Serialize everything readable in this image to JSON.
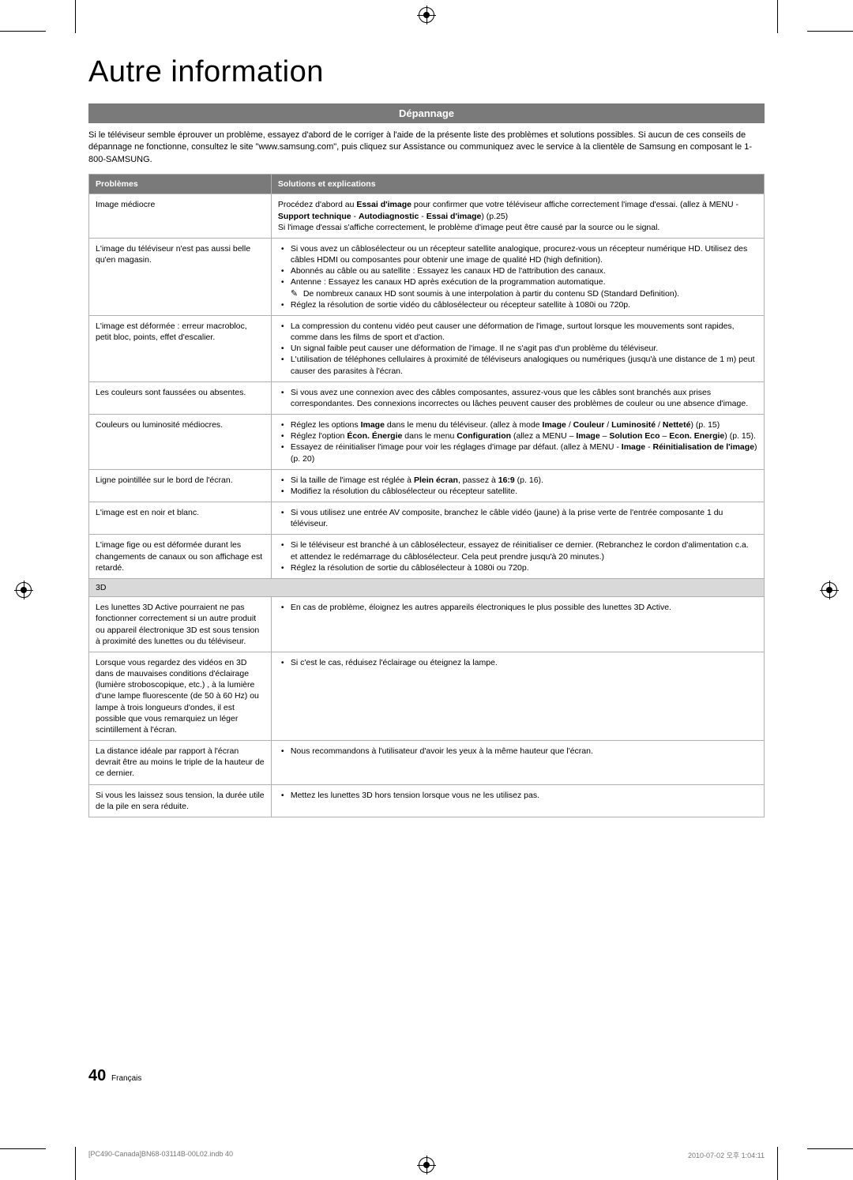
{
  "colors": {
    "section_bar_bg": "#7a7a7a",
    "section_bar_fg": "#ffffff",
    "table_border": "#b0b0b0",
    "cat_row_bg": "#d9d9d9",
    "body_text": "#000000",
    "page_bg": "#ffffff"
  },
  "title": "Autre information",
  "section_header": "Dépannage",
  "intro": "Si le téléviseur semble éprouver un problème, essayez d'abord de le corriger à l'aide de la présente liste des problèmes et solutions possibles. Si aucun de ces conseils de dépannage ne fonctionne, consultez le site \"www.samsung.com\", puis cliquez sur Assistance ou communiquez avec le service à la clientèle de Samsung en composant le 1-800-SAMSUNG.",
  "headers": {
    "problems": "Problèmes",
    "solutions": "Solutions et explications"
  },
  "rows": {
    "r0": {
      "prob": "Image médiocre",
      "sol_html": "Procédez d'abord au <b>Essai d'image</b> pour confirmer que votre téléviseur affiche correctement l'image d'essai. (allez à MENU - <b>Support technique</b> - <b>Autodiagnostic</b> - <b>Essai d'image</b>) (p.25)<br>Si l'image d'essai s'affiche correctement, le problème d'image peut être causé par la source ou le signal."
    },
    "r1": {
      "prob": "L'image du téléviseur n'est pas aussi belle qu'en magasin.",
      "b0": "Si vous avez un câblosélecteur ou un récepteur satellite analogique, procurez-vous un récepteur numérique HD. Utilisez des câbles HDMI ou composantes pour obtenir une image de qualité HD (high definition).",
      "b1": "Abonnés au câble ou au satellite : Essayez les canaux HD de l'attribution des canaux.",
      "b2": "Antenne : Essayez les canaux HD après exécution de la programmation automatique.",
      "note": "De nombreux canaux HD sont soumis à une interpolation à partir du contenu SD (Standard Definition).",
      "b3": "Réglez la résolution de sortie vidéo du câblosélecteur ou récepteur satellite à 1080i ou 720p."
    },
    "r2": {
      "prob": "L'image est déformée : erreur macrobloc, petit bloc, points, effet d'escalier.",
      "b0": "La compression du contenu vidéo peut causer une déformation de l'image, surtout lorsque les mouvements sont rapides, comme dans les films de sport et d'action.",
      "b1": "Un signal faible peut causer une déformation de l'image. Il ne s'agit pas d'un problème du téléviseur.",
      "b2": "L'utilisation de téléphones cellulaires à proximité de téléviseurs analogiques ou numériques (jusqu'à une distance de 1 m) peut causer des parasites à l'écran."
    },
    "r3": {
      "prob": "Les couleurs sont faussées ou absentes.",
      "b0": "Si vous avez une connexion avec des câbles composantes, assurez-vous que les câbles sont branchés aux prises correspondantes. Des connexions incorrectes ou lâches peuvent causer des problèmes de couleur ou une absence d'image."
    },
    "r4": {
      "prob": "Couleurs ou luminosité médiocres.",
      "b0_html": "Réglez les options <b>Image</b> dans le menu du téléviseur. (allez à mode <b>Image</b> / <b>Couleur</b> / <b>Luminosité</b> / <b>Netteté</b>) (p. 15)",
      "b1_html": "Réglez l'option <b>Écon. Énergie</b> dans le menu <b>Configuration</b> (allez a MENU – <b>Image</b> – <b>Solution Eco</b> – <b>Econ. Energie</b>) (p. 15).",
      "b2_html": "Essayez de réinitialiser l'image pour voir les réglages d'image par défaut. (allez à MENU - <b>Image</b> - <b>Réinitialisation de l'image</b>) (p. 20)"
    },
    "r5": {
      "prob": "Ligne pointillée sur le bord de l'écran.",
      "b0_html": "Si la taille de l'image est réglée à <b>Plein écran</b>, passez à <b>16:9</b> (p. 16).",
      "b1": "Modifiez la résolution du câblosélecteur ou récepteur satellite."
    },
    "r6": {
      "prob": "L'image est en noir et blanc.",
      "b0": "Si vous utilisez une entrée AV composite, branchez le câble vidéo (jaune) à la prise verte de l'entrée composante 1 du téléviseur."
    },
    "r7": {
      "prob": "L'image fige ou est déformée durant les changements de canaux ou son affichage est retardé.",
      "b0": "Si le téléviseur est branché à un câblosélecteur, essayez de réinitialiser ce dernier. (Rebranchez le cordon d'alimentation c.a. et attendez le redémarrage du câblosélecteur. Cela peut prendre jusqu'à 20 minutes.)",
      "b1": "Réglez la résolution de sortie du câblosélecteur à 1080i ou 720p."
    },
    "cat3d": "3D",
    "r8": {
      "prob": "Les lunettes 3D Active pourraient ne pas fonctionner correctement si un autre produit ou appareil électronique 3D est sous tension à proximité des lunettes ou du téléviseur.",
      "b0": "En cas de problème, éloignez les autres appareils électroniques le plus possible des lunettes 3D Active."
    },
    "r9": {
      "prob": "Lorsque vous regardez des vidéos en 3D dans de mauvaises conditions d'éclairage (lumière stroboscopique, etc.) , à la lumière d'une lampe fluorescente (de 50 à 60 Hz) ou lampe à trois longueurs d'ondes, il est possible que vous remarquiez un léger scintillement à l'écran.",
      "b0": "Si c'est le cas, réduisez l'éclairage ou éteignez la lampe."
    },
    "r10": {
      "prob": "La distance idéale par rapport à l'écran devrait être au moins le triple de la hauteur de ce dernier.",
      "b0": "Nous recommandons à l'utilisateur d'avoir les yeux à la même hauteur que l'écran."
    },
    "r11": {
      "prob": "Si vous les laissez sous tension, la durée utile de la pile en sera réduite.",
      "b0": "Mettez les lunettes 3D hors tension lorsque vous ne les utilisez pas."
    }
  },
  "footer": {
    "page_number": "40",
    "lang": "Français"
  },
  "printline": {
    "left": "[PC490-Canada]BN68-03114B-00L02.indb   40",
    "right": "2010-07-02   오후 1:04:11"
  }
}
